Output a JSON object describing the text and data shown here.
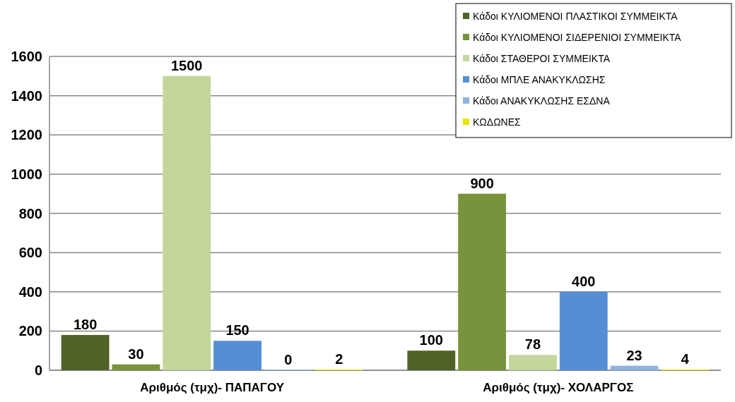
{
  "chart_data": {
    "type": "bar",
    "categories": [
      "Αριθμός (τμχ)- ΠΑΠΑΓΟΥ",
      "Αριθμός (τμχ)- ΧΟΛΑΡΓΟΣ"
    ],
    "series": [
      {
        "name": "Κάδοι ΚΥΛΙΟΜΕΝΟΙ ΠΛΑΣΤΙΚΟΙ ΣΥΜΜΕΙΚΤΑ",
        "color": "#4f6228",
        "values": [
          180,
          100
        ]
      },
      {
        "name": "Κάδοι ΚΥΛΙΟΜΕΝΟΙ ΣΙΔΕΡΕΝΙΟΙ ΣΥΜΜΕΙΚΤΑ",
        "color": "#77933c",
        "values": [
          30,
          900
        ]
      },
      {
        "name": "Κάδοι ΣΤΑΘΕΡΟΙ ΣΥΜΜΕΙΚΤΑ",
        "color": "#c3d69b",
        "values": [
          1500,
          78
        ]
      },
      {
        "name": "Κάδοι ΜΠΛΕ ΑΝΑΚΥΚΛΩΣΗΣ",
        "color": "#558ed5",
        "values": [
          150,
          400
        ]
      },
      {
        "name": "Κάδοι ΑΝΑΚΥΚΛΩΣΗΣ ΕΣΔΝΑ",
        "color": "#8eb4e3",
        "values": [
          0,
          23
        ]
      },
      {
        "name": "ΚΩΔΩΝΕΣ",
        "color": "#e6e600",
        "values": [
          2,
          4
        ]
      }
    ],
    "ylim": [
      0,
      1600
    ],
    "yticks": [
      0,
      200,
      400,
      600,
      800,
      1000,
      1200,
      1400,
      1600
    ],
    "grid": "y",
    "legend": "top right",
    "data_labels": true
  }
}
